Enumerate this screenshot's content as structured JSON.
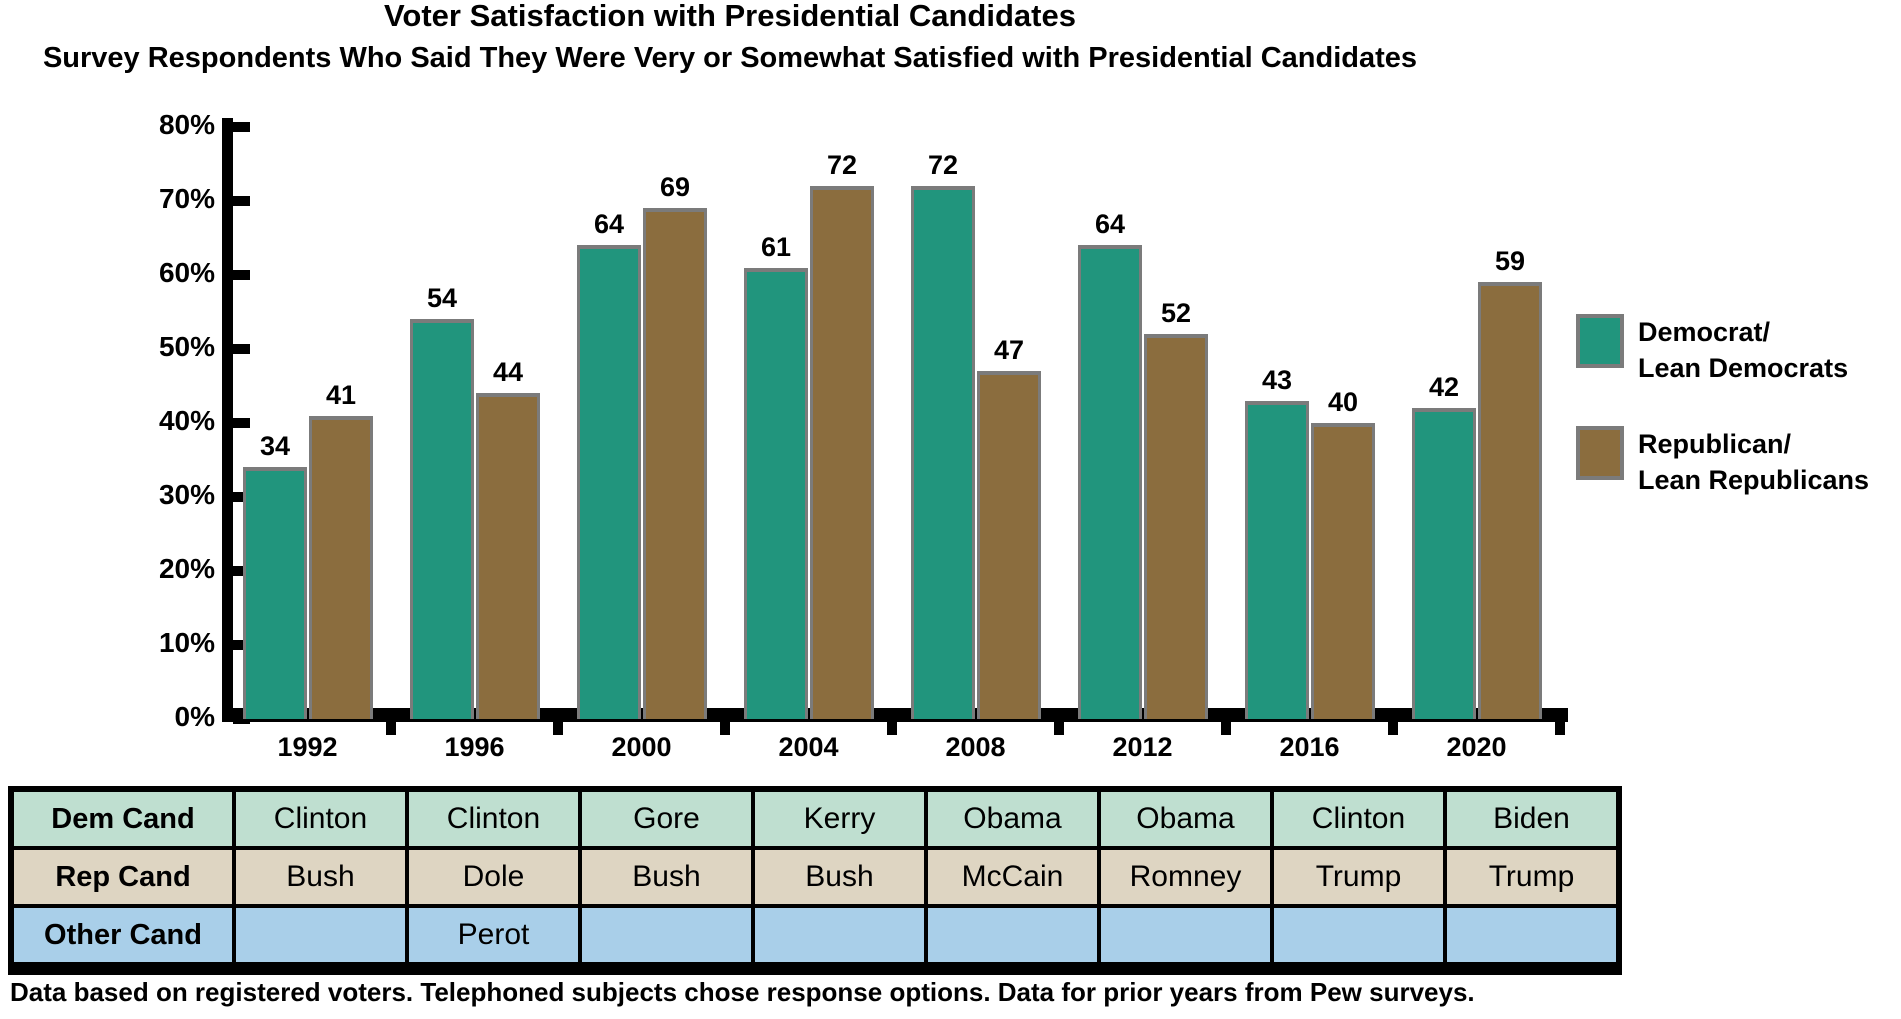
{
  "title": "Voter Satisfaction with Presidential Candidates",
  "subtitle": "Survey Respondents Who Said They Were Very or Somewhat Satisfied with Presidential Candidates",
  "footnote": "Data based on registered voters. Telephoned subjects chose response options. Data for prior years from Pew surveys.",
  "colors": {
    "dem_bar": "#21957D",
    "rep_bar": "#8B6D3E",
    "bar_border": "#7b7b7b",
    "axis": "#000000",
    "table_dem_row": "#BFDFD0",
    "table_rep_row": "#DED5C2",
    "table_other_row": "#A9CFE9"
  },
  "chart_data": {
    "type": "bar",
    "categories": [
      "1992",
      "1996",
      "2000",
      "2004",
      "2008",
      "2012",
      "2016",
      "2020"
    ],
    "series": [
      {
        "name": "Democrat/Lean Democrats",
        "color": "#21957D",
        "values": [
          34,
          54,
          64,
          61,
          72,
          64,
          43,
          42
        ]
      },
      {
        "name": "Republican/Lean Republicans",
        "color": "#8B6D3E",
        "values": [
          41,
          44,
          69,
          72,
          47,
          52,
          40,
          59
        ]
      }
    ],
    "title": "Voter Satisfaction with Presidential Candidates",
    "xlabel": "",
    "ylabel": "",
    "ylim": [
      0,
      80
    ],
    "ytick_labels": [
      "80%",
      "70%",
      "60%",
      "50%",
      "40%",
      "30%",
      "20%",
      "10%",
      "0%"
    ],
    "grid": false,
    "legend_position": "right",
    "bar_value_labels_shown": true
  },
  "legend": {
    "items": [
      {
        "line1": "Democrat/",
        "line2": "Lean Democrats",
        "color": "#21957D"
      },
      {
        "line1": "Republican/",
        "line2": "Lean Republicans",
        "color": "#8B6D3E"
      }
    ]
  },
  "table": {
    "row_labels": [
      "Dem Cand",
      "Rep Cand",
      "Other Cand"
    ],
    "rows": [
      {
        "label": "Dem Cand",
        "cells": [
          "Clinton",
          "Clinton",
          "Gore",
          "Kerry",
          "Obama",
          "Obama",
          "Clinton",
          "Biden"
        ]
      },
      {
        "label": "Rep Cand",
        "cells": [
          "Bush",
          "Dole",
          "Bush",
          "Bush",
          "McCain",
          "Romney",
          "Trump",
          "Trump"
        ]
      },
      {
        "label": "Other Cand",
        "cells": [
          "",
          "Perot",
          "",
          "",
          "",
          "",
          "",
          ""
        ]
      }
    ]
  }
}
